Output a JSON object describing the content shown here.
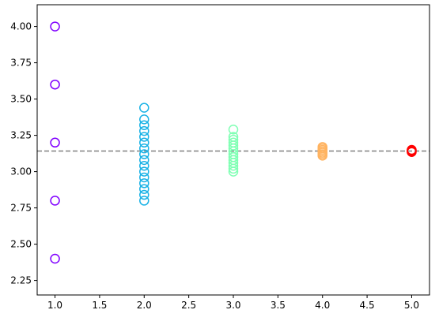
{
  "chart_data": {
    "type": "scatter",
    "title": "",
    "xlabel": "",
    "ylabel": "",
    "xlim": [
      0.8,
      5.2
    ],
    "ylim": [
      2.15,
      4.15
    ],
    "x_ticks": [
      1.0,
      1.5,
      2.0,
      2.5,
      3.0,
      3.5,
      4.0,
      4.5,
      5.0
    ],
    "x_tick_labels": [
      "1.0",
      "1.5",
      "2.0",
      "2.5",
      "3.0",
      "3.5",
      "4.0",
      "4.5",
      "5.0"
    ],
    "y_ticks": [
      2.25,
      2.5,
      2.75,
      3.0,
      3.25,
      3.5,
      3.75,
      4.0
    ],
    "y_tick_labels": [
      "2.25",
      "2.50",
      "2.75",
      "3.00",
      "3.25",
      "3.50",
      "3.75",
      "4.00"
    ],
    "grid": false,
    "reference_line": {
      "y": 3.1416,
      "style": "dashed",
      "color": "#808080"
    },
    "series": [
      {
        "x": 1,
        "color": "#8000ff",
        "marker": "open-circle",
        "values": [
          2.4,
          2.8,
          3.2,
          3.6,
          4.0
        ]
      },
      {
        "x": 2,
        "color": "#19b2e6",
        "marker": "open-circle",
        "values": [
          2.8,
          2.84,
          2.88,
          2.92,
          2.96,
          3.0,
          3.04,
          3.08,
          3.12,
          3.16,
          3.2,
          3.24,
          3.28,
          3.32,
          3.36,
          3.44
        ]
      },
      {
        "x": 3,
        "color": "#80ffb4",
        "marker": "open-circle",
        "values": [
          3.0,
          3.02,
          3.04,
          3.06,
          3.08,
          3.1,
          3.12,
          3.14,
          3.16,
          3.18,
          3.2,
          3.22,
          3.24,
          3.29
        ]
      },
      {
        "x": 4,
        "color": "#ffb360",
        "marker": "open-circle",
        "values": [
          3.11,
          3.12,
          3.13,
          3.14,
          3.15,
          3.16,
          3.17
        ]
      },
      {
        "x": 5,
        "color": "#ff0000",
        "marker": "open-circle",
        "values": [
          3.135,
          3.14,
          3.145,
          3.15
        ]
      }
    ]
  }
}
